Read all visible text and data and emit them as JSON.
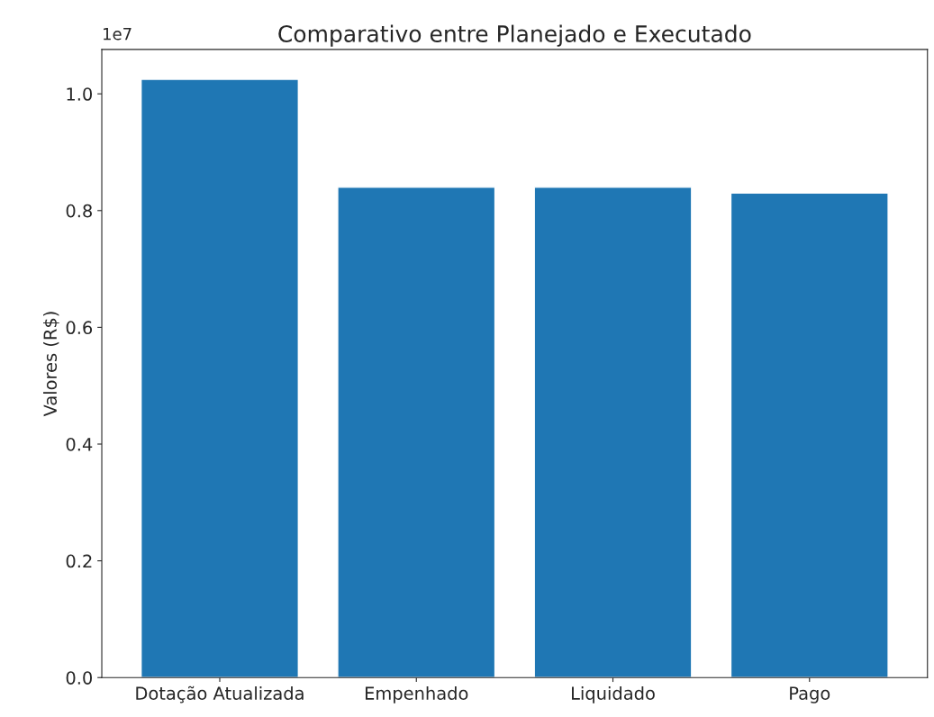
{
  "chart_data": {
    "type": "bar",
    "title": "Comparativo entre Planejado e Executado",
    "ylabel": "Valores (R$)",
    "categories": [
      "Dotação Atualizada",
      "Empenhado",
      "Liquidado",
      "Pago"
    ],
    "values": [
      1.025,
      0.84,
      0.84,
      0.83
    ],
    "color": "#1f77b4",
    "ylim": [
      0,
      1.076
    ],
    "yticks": [
      {
        "value": 0,
        "label": "0.0"
      },
      {
        "value": 0.2,
        "label": "0.2"
      },
      {
        "value": 0.4,
        "label": "0.4"
      },
      {
        "value": 0.6,
        "label": "0.6"
      },
      {
        "value": 0.8,
        "label": "0.8"
      },
      {
        "value": 1,
        "label": "1.0"
      }
    ],
    "annotations": [
      "1e7"
    ],
    "grid": false
  }
}
